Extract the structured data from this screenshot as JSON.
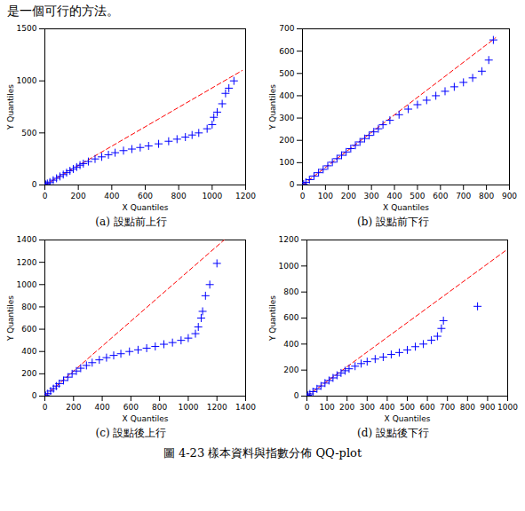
{
  "text": "是一個可行的方法。",
  "caption": "圖 4-23 樣本資料與指數分佈 QQ-plot",
  "chart_data": [
    {
      "type": "scatter",
      "subtitle": "(a) 設點前上行",
      "x_label": "X Quantiles",
      "y_label": "Y Quantiles",
      "xlim": [
        0,
        1200
      ],
      "xticks": [
        0,
        200,
        400,
        600,
        800,
        1000,
        1200
      ],
      "ylim": [
        0,
        1500
      ],
      "yticks": [
        0,
        500,
        1000,
        1500
      ],
      "grid": false,
      "marker": "plus",
      "color": "#0000ff",
      "x": [
        5,
        15,
        30,
        50,
        70,
        90,
        110,
        130,
        150,
        170,
        190,
        210,
        230,
        260,
        300,
        340,
        380,
        420,
        470,
        520,
        570,
        620,
        680,
        740,
        790,
        840,
        880,
        920,
        970,
        1000,
        1010,
        1030,
        1060,
        1080,
        1100,
        1130
      ],
      "values": [
        5,
        14,
        28,
        46,
        64,
        82,
        100,
        118,
        136,
        154,
        172,
        190,
        205,
        225,
        250,
        270,
        290,
        310,
        330,
        345,
        360,
        375,
        395,
        420,
        440,
        460,
        480,
        500,
        540,
        580,
        650,
        700,
        780,
        880,
        930,
        1000
      ],
      "reference_line": {
        "x": [
          0,
          1180
        ],
        "y": [
          0,
          1100
        ],
        "color": "#ff0000",
        "line_style": "dashed"
      }
    },
    {
      "type": "scatter",
      "subtitle": "(b) 設點前下行",
      "x_label": "X Quantiles",
      "y_label": "Y Quantiles",
      "xlim": [
        0,
        900
      ],
      "xticks": [
        0,
        100,
        200,
        300,
        400,
        500,
        600,
        700,
        800,
        900
      ],
      "ylim": [
        0,
        700
      ],
      "yticks": [
        0,
        100,
        200,
        300,
        400,
        500,
        600,
        700
      ],
      "grid": false,
      "marker": "plus",
      "color": "#0000ff",
      "x": [
        5,
        15,
        30,
        50,
        70,
        90,
        110,
        130,
        150,
        170,
        190,
        210,
        230,
        250,
        270,
        290,
        310,
        330,
        350,
        380,
        420,
        460,
        500,
        540,
        580,
        620,
        660,
        700,
        740,
        780,
        810,
        830
      ],
      "values": [
        4,
        12,
        24,
        40,
        55,
        70,
        86,
        102,
        118,
        133,
        148,
        163,
        178,
        193,
        208,
        222,
        238,
        252,
        270,
        290,
        315,
        340,
        360,
        380,
        400,
        420,
        440,
        460,
        480,
        510,
        560,
        650
      ],
      "reference_line": {
        "x": [
          0,
          840
        ],
        "y": [
          0,
          660
        ],
        "color": "#ff0000",
        "line_style": "dashed"
      }
    },
    {
      "type": "scatter",
      "subtitle": "(c) 設點後上行",
      "x_label": "X Quantiles",
      "y_label": "Y Quantiles",
      "xlim": [
        0,
        1400
      ],
      "xticks": [
        0,
        200,
        400,
        600,
        800,
        1000,
        1200,
        1400
      ],
      "ylim": [
        0,
        1400
      ],
      "yticks": [
        0,
        200,
        400,
        600,
        800,
        1000,
        1200,
        1400
      ],
      "grid": false,
      "marker": "plus",
      "color": "#0000ff",
      "x": [
        5,
        20,
        40,
        60,
        80,
        100,
        130,
        160,
        190,
        220,
        250,
        290,
        330,
        380,
        430,
        480,
        530,
        590,
        650,
        710,
        770,
        830,
        890,
        950,
        1000,
        1050,
        1070,
        1090,
        1100,
        1120,
        1150,
        1200
      ],
      "values": [
        6,
        22,
        45,
        67,
        90,
        112,
        140,
        170,
        200,
        225,
        250,
        275,
        300,
        325,
        345,
        365,
        380,
        400,
        415,
        430,
        445,
        465,
        480,
        500,
        520,
        560,
        620,
        700,
        760,
        900,
        1000,
        1190
      ],
      "reference_line": {
        "x": [
          0,
          1250
        ],
        "y": [
          0,
          1400
        ],
        "color": "#ff0000",
        "line_style": "dashed"
      }
    },
    {
      "type": "scatter",
      "subtitle": "(d) 設點後下行",
      "x_label": "X Quantiles",
      "y_label": "Y Quantiles",
      "xlim": [
        0,
        1000
      ],
      "xticks": [
        0,
        100,
        200,
        300,
        400,
        500,
        600,
        700,
        800,
        900,
        1000
      ],
      "ylim": [
        0,
        1200
      ],
      "yticks": [
        0,
        200,
        400,
        600,
        800,
        1000,
        1200
      ],
      "grid": false,
      "marker": "plus",
      "color": "#0000ff",
      "x": [
        5,
        15,
        30,
        50,
        70,
        90,
        110,
        130,
        150,
        170,
        190,
        210,
        240,
        270,
        300,
        340,
        380,
        420,
        460,
        500,
        540,
        580,
        620,
        650,
        670,
        680,
        850
      ],
      "values": [
        6,
        17,
        34,
        56,
        78,
        100,
        120,
        140,
        160,
        178,
        195,
        210,
        230,
        250,
        265,
        285,
        300,
        320,
        335,
        355,
        380,
        400,
        430,
        460,
        520,
        580,
        690
      ],
      "reference_line": {
        "x": [
          0,
          1000
        ],
        "y": [
          0,
          1130
        ],
        "color": "#ff0000",
        "line_style": "dashed"
      }
    }
  ]
}
